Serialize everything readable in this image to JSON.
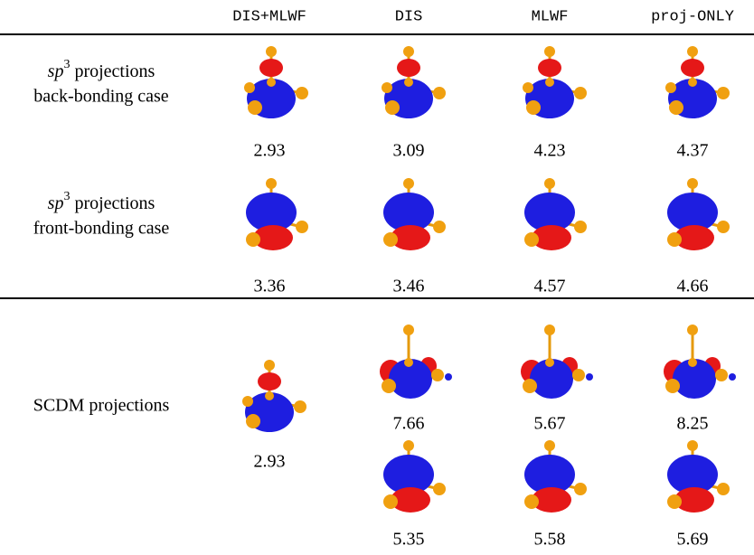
{
  "header": {
    "columns": [
      "DIS+MLWF",
      "DIS",
      "MLWF",
      "proj-ONLY"
    ]
  },
  "rows": [
    {
      "label": {
        "math": "sp",
        "sup": "3",
        "text": " projections",
        "line2": "back-bonding case"
      },
      "values": [
        2.93,
        3.09,
        4.23,
        4.37
      ]
    },
    {
      "label": {
        "math": "sp",
        "sup": "3",
        "text": " projections",
        "line2": "front-bonding case"
      },
      "values": [
        3.36,
        3.46,
        4.57,
        4.66
      ]
    },
    {
      "label": "SCDM projections",
      "dis_mlwf": 2.93,
      "values": [
        [
          7.66,
          5.67,
          8.25
        ],
        [
          5.35,
          5.58,
          5.69
        ]
      ]
    }
  ]
}
